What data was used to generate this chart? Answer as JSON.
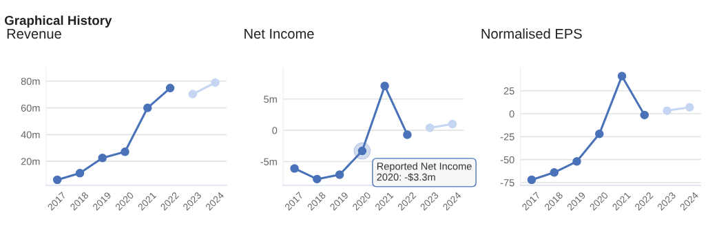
{
  "chart_data": [
    {
      "type": "line",
      "title": "Revenue",
      "annotations": [
        "Graphical History"
      ],
      "categories": [
        "2017",
        "2018",
        "2019",
        "2020",
        "2021",
        "2022",
        "2023",
        "2024"
      ],
      "ylim": [
        2,
        90
      ],
      "yticks": [
        {
          "value": 20,
          "label": "20m"
        },
        {
          "value": 40,
          "label": "40m"
        },
        {
          "value": 60,
          "label": "60m"
        },
        {
          "value": 80,
          "label": "80m"
        }
      ],
      "grid": "y",
      "marker": "circle",
      "legend": false,
      "series": [
        {
          "color": "#4a72b8",
          "values": [
            6.1,
            11.1,
            22.5,
            27.1,
            60,
            74.8,
            null,
            null
          ]
        },
        {
          "color": "#c5d6f2",
          "values": [
            null,
            null,
            null,
            null,
            null,
            null,
            70.3,
            78.9
          ]
        }
      ]
    },
    {
      "type": "line",
      "title": "Net Income",
      "annotations": [
        {
          "text": "Reported Net Income\n2020: -$3.3m",
          "x": "2020",
          "y": -3.3
        }
      ],
      "categories": [
        "2017",
        "2018",
        "2019",
        "2020",
        "2021",
        "2022",
        "2023",
        "2024"
      ],
      "ylim": [
        -8.8,
        10
      ],
      "yticks": [
        {
          "value": -5,
          "label": "-5m"
        },
        0,
        {
          "value": 5,
          "label": "5m"
        }
      ],
      "grid": "y",
      "marker": "circle",
      "legend": false,
      "series": [
        {
          "color": "#4a72b8",
          "values": [
            -6.1,
            -7.8,
            -7.1,
            -3.3,
            7.1,
            -0.7,
            null,
            null
          ]
        },
        {
          "color": "#c5d6f2",
          "values": [
            null,
            null,
            null,
            null,
            null,
            null,
            0.4,
            1.0
          ]
        }
      ]
    },
    {
      "type": "line",
      "title": "Normalised EPS",
      "categories": [
        "2017",
        "2018",
        "2019",
        "2020",
        "2021",
        "2022",
        "2023",
        "2024"
      ],
      "ylim": [
        -78,
        50
      ],
      "yticks": [
        -75,
        -50,
        -25,
        0,
        25
      ],
      "grid": "y",
      "marker": "circle",
      "legend": false,
      "series": [
        {
          "color": "#4a72b8",
          "values": [
            -72,
            -64,
            -52,
            -22,
            41,
            -1.4,
            null,
            null
          ]
        },
        {
          "color": "#c5d6f2",
          "values": [
            null,
            null,
            null,
            null,
            null,
            null,
            3.3,
            7
          ]
        }
      ]
    }
  ]
}
